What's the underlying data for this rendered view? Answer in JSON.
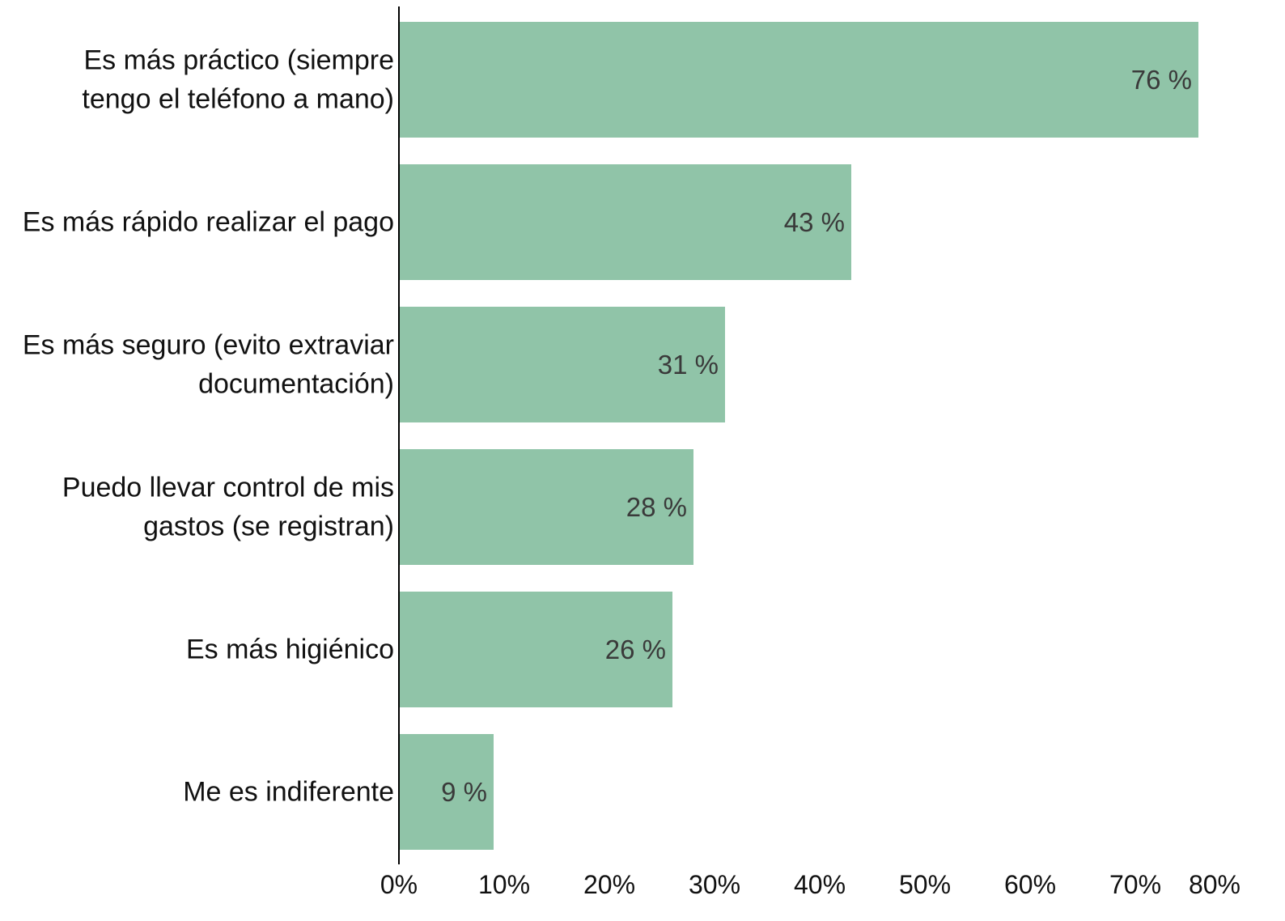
{
  "chart_data": {
    "type": "bar",
    "orientation": "horizontal",
    "title": "",
    "xlabel": "",
    "ylabel": "",
    "categories": [
      [
        "Es más práctico (siempre",
        "tengo el teléfono a mano)"
      ],
      [
        "Es más rápido realizar el pago"
      ],
      [
        "Es más seguro (evito extraviar",
        "documentación)"
      ],
      [
        "Puedo llevar control de mis",
        "gastos (se registran)"
      ],
      [
        "Es más higiénico"
      ],
      [
        "Me es indiferente"
      ]
    ],
    "values": [
      76,
      43,
      31,
      28,
      26,
      9
    ],
    "value_labels": [
      "76 %",
      "43 %",
      "31 %",
      "28 %",
      "26 %",
      "9 %"
    ],
    "xlim": [
      0,
      80
    ],
    "x_ticks": [
      0,
      10,
      20,
      30,
      40,
      50,
      60,
      70,
      80
    ],
    "x_tick_labels": [
      "0%",
      "10%",
      "20%",
      "30%",
      "40%",
      "50%",
      "60%",
      "70%",
      "80%"
    ],
    "grid": false,
    "legend": "none",
    "bar_color": "#90c4a8",
    "axis_color": "#000000"
  }
}
